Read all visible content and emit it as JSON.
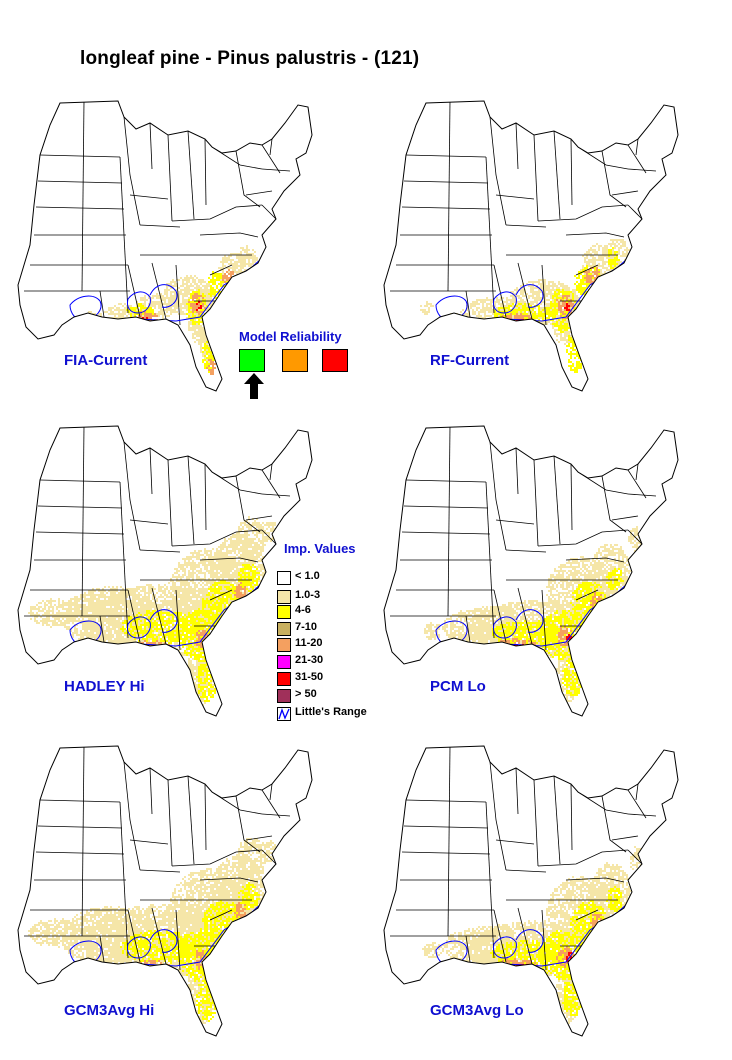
{
  "title": "longleaf pine - Pinus palustris - (121)",
  "maps": [
    {
      "label": "FIA-Current",
      "intensity": "current"
    },
    {
      "label": "RF-Current",
      "intensity": "model"
    },
    {
      "label": "HADLEY Hi",
      "intensity": "high"
    },
    {
      "label": "PCM Lo",
      "intensity": "mid"
    },
    {
      "label": "GCM3Avg Hi",
      "intensity": "high"
    },
    {
      "label": "GCM3Avg Lo",
      "intensity": "mid"
    }
  ],
  "reliability": {
    "title": "Model Reliability",
    "levels": [
      {
        "color": "#00ff00",
        "name": "high"
      },
      {
        "color": "#ff9900",
        "name": "medium"
      },
      {
        "color": "#ff0000",
        "name": "low"
      }
    ],
    "selected": "high"
  },
  "legend": {
    "title": "Imp. Values",
    "items": [
      {
        "label": "< 1.0",
        "color": "#ffffff"
      },
      {
        "label": "1.0-3",
        "color": "#f5e6a8"
      },
      {
        "label": "4-6",
        "color": "#ffff00"
      },
      {
        "label": "7-10",
        "color": "#c8b060"
      },
      {
        "label": "11-20",
        "color": "#f4a060"
      },
      {
        "label": "21-30",
        "color": "#ff00ff"
      },
      {
        "label": "31-50",
        "color": "#ff0000"
      },
      {
        "label": "> 50",
        "color": "#a0305a"
      },
      {
        "label": "Little's Range",
        "color": "range-icon"
      }
    ]
  },
  "colors": {
    "label": "#1010d0",
    "range": "#0000ff",
    "state_line": "#000000"
  }
}
